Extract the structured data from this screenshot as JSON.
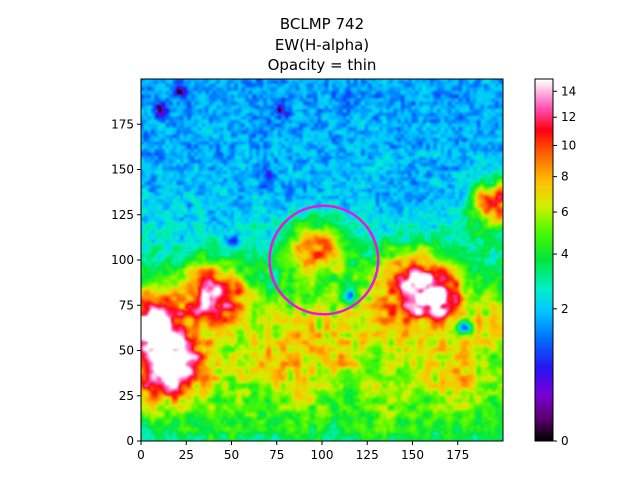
{
  "chart_data": {
    "type": "heatmap",
    "title_lines": [
      "BCLMP 742",
      "EW(H-alpha)",
      "Opacity = thin"
    ],
    "xlabel": "",
    "ylabel": "",
    "xlim": [
      0,
      200
    ],
    "ylim": [
      0,
      200
    ],
    "x_ticks": [
      0,
      25,
      50,
      75,
      100,
      125,
      150,
      175
    ],
    "y_ticks": [
      0,
      25,
      50,
      75,
      100,
      125,
      150,
      175
    ],
    "colorbar": {
      "colormap": "gist_ncar-like (black-purple-blue-cyan-green-yellow-orange-red-pink-white)",
      "range": [
        0,
        15
      ],
      "scale": "square-root",
      "ticks": [
        0,
        2,
        4,
        6,
        8,
        10,
        12,
        14
      ]
    },
    "aperture": {
      "shape": "circle",
      "center_x": 101,
      "center_y": 100,
      "radius": 30,
      "color": "#e815e8"
    },
    "field_description": "mostly blue/cyan background (EW~1-3) in the upper half; extended green-yellow-red-white emission (EW~5-15) across the lower half, especially lower-left (x~0-50, y~20-100) and right (x~135-175, y~60-110); dark purple compact spots near the top.",
    "bright_regions": [
      {
        "x": 15,
        "y": 40,
        "radius": 12,
        "value": 14
      },
      {
        "x": 5,
        "y": 65,
        "radius": 10,
        "value": 15
      },
      {
        "x": 40,
        "y": 80,
        "radius": 10,
        "value": 13
      },
      {
        "x": 150,
        "y": 85,
        "radius": 12,
        "value": 14
      },
      {
        "x": 165,
        "y": 80,
        "radius": 8,
        "value": 13
      },
      {
        "x": 195,
        "y": 130,
        "radius": 8,
        "value": 13
      },
      {
        "x": 95,
        "y": 105,
        "radius": 10,
        "value": 10
      }
    ],
    "dark_spots": [
      {
        "x": 10,
        "y": 183,
        "value": 0.3
      },
      {
        "x": 22,
        "y": 193,
        "value": 0.1
      },
      {
        "x": 77,
        "y": 182,
        "value": 0.2
      },
      {
        "x": 70,
        "y": 146,
        "value": 0.3
      },
      {
        "x": 50,
        "y": 110,
        "value": 1.0
      },
      {
        "x": 115,
        "y": 80,
        "value": 1.0
      },
      {
        "x": 178,
        "y": 62,
        "value": 1.0
      }
    ]
  }
}
